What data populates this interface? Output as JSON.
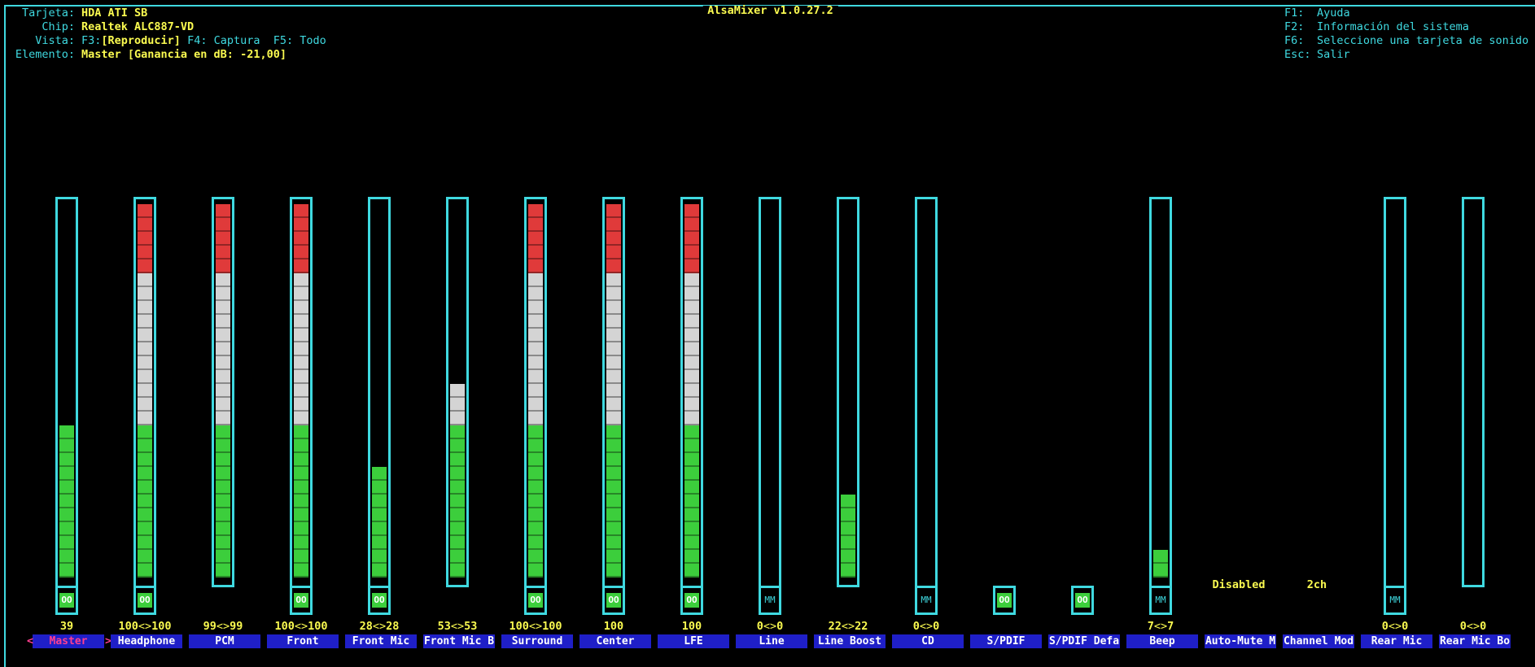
{
  "title": "AlsaMixer v1.0.27.2",
  "info": {
    "card_label": "Tarjeta:",
    "card_value": "HDA ATI SB",
    "chip_label": "Chip:",
    "chip_value": "Realtek ALC887-VD",
    "view_label": "Vista:",
    "view_f3": "F3:",
    "view_play": "[Reproducir]",
    "view_f4": " F4: Captura",
    "view_f5": "  F5: Todo",
    "item_label": "Elemento:",
    "item_value": "Master [Ganancia en dB: -21,00]"
  },
  "help": [
    {
      "key": "F1:",
      "text": "Ayuda"
    },
    {
      "key": "F2:",
      "text": "Información del sistema"
    },
    {
      "key": "F6:",
      "text": "Seleccione una tarjeta de sonido"
    },
    {
      "key": "Esc:",
      "text": "Salir"
    }
  ],
  "colors": {
    "frame": "#3fd9e0",
    "label_bg": "#1f1fc8",
    "value": "#fbfb50",
    "selected": "#ff3f8f"
  },
  "controls": [
    {
      "name": "Master",
      "selected": true,
      "level": 39,
      "value_text": "39",
      "mute": "on"
    },
    {
      "name": "Headphone",
      "level": 100,
      "value_text": "100<>100",
      "mute": "on"
    },
    {
      "name": "PCM",
      "level": 99,
      "value_text": "99<>99"
    },
    {
      "name": "Front",
      "level": 100,
      "value_text": "100<>100",
      "mute": "on"
    },
    {
      "name": "Front Mic",
      "level": 28,
      "value_text": "28<>28",
      "mute": "on"
    },
    {
      "name": "Front Mic B",
      "level": 53,
      "value_text": "53<>53"
    },
    {
      "name": "Surround",
      "level": 100,
      "value_text": "100<>100",
      "mute": "on"
    },
    {
      "name": "Center",
      "level": 100,
      "value_text": "100",
      "mute": "on"
    },
    {
      "name": "LFE",
      "level": 100,
      "value_text": "100",
      "mute": "on"
    },
    {
      "name": "Line",
      "level": 0,
      "value_text": "0<>0",
      "mute": "off"
    },
    {
      "name": "Line Boost",
      "level": 22,
      "value_text": "22<>22"
    },
    {
      "name": "CD",
      "level": 0,
      "value_text": "0<>0",
      "mute": "off"
    },
    {
      "name": "S/PDIF",
      "switch_only": true,
      "mute": "on"
    },
    {
      "name": "S/PDIF Defa",
      "switch_only": true,
      "mute": "on"
    },
    {
      "name": "Beep",
      "level": 7,
      "value_text": "7<>7",
      "mute": "off"
    },
    {
      "name": "Auto-Mute M",
      "enum_text": "Disabled"
    },
    {
      "name": "Channel Mod",
      "enum_text": "2ch"
    },
    {
      "name": "Rear Mic",
      "level": 0,
      "value_text": "0<>0",
      "mute": "off"
    },
    {
      "name": "Rear Mic Bo",
      "level": 0,
      "value_text": "0<>0"
    }
  ],
  "mute_labels": {
    "on": "OO",
    "off": "MM"
  }
}
